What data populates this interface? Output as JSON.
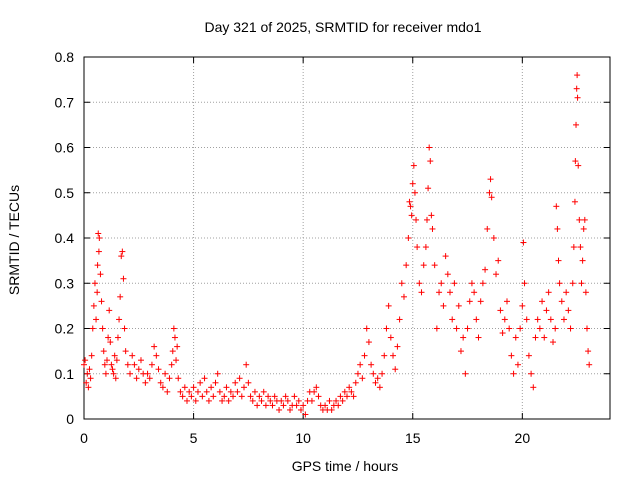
{
  "chart_data": {
    "type": "scatter",
    "title": "Day 321 of 2025, SRMTID for receiver mdo1",
    "xlabel": "GPS time / hours",
    "ylabel": "SRMTID / TECUs",
    "xlim": [
      0,
      24
    ],
    "ylim": [
      0,
      0.8
    ],
    "xticks": [
      0,
      5,
      10,
      15,
      20
    ],
    "xtick_labels": [
      "0",
      "5",
      "10",
      "15",
      "20"
    ],
    "yticks": [
      0,
      0.1,
      0.2,
      0.3,
      0.4,
      0.5,
      0.6,
      0.7,
      0.8
    ],
    "ytick_labels": [
      "0",
      "0.1",
      "0.2",
      "0.3",
      "0.4",
      "0.5",
      "0.6",
      "0.7",
      "0.8"
    ],
    "grid": true,
    "marker": "+",
    "marker_color": "#ff0000",
    "series": [
      {
        "name": "SRMTID",
        "points": [
          [
            0.0,
            0.12
          ],
          [
            0.05,
            0.13
          ],
          [
            0.1,
            0.08
          ],
          [
            0.15,
            0.1
          ],
          [
            0.2,
            0.07
          ],
          [
            0.25,
            0.11
          ],
          [
            0.3,
            0.09
          ],
          [
            0.35,
            0.14
          ],
          [
            0.4,
            0.2
          ],
          [
            0.45,
            0.25
          ],
          [
            0.5,
            0.3
          ],
          [
            0.55,
            0.22
          ],
          [
            0.6,
            0.28
          ],
          [
            0.62,
            0.34
          ],
          [
            0.65,
            0.41
          ],
          [
            0.68,
            0.37
          ],
          [
            0.7,
            0.4
          ],
          [
            0.75,
            0.32
          ],
          [
            0.8,
            0.26
          ],
          [
            0.85,
            0.2
          ],
          [
            0.9,
            0.15
          ],
          [
            0.95,
            0.12
          ],
          [
            1.0,
            0.1
          ],
          [
            1.05,
            0.13
          ],
          [
            1.1,
            0.18
          ],
          [
            1.15,
            0.24
          ],
          [
            1.2,
            0.17
          ],
          [
            1.25,
            0.12
          ],
          [
            1.3,
            0.11
          ],
          [
            1.35,
            0.1
          ],
          [
            1.4,
            0.14
          ],
          [
            1.45,
            0.09
          ],
          [
            1.5,
            0.13
          ],
          [
            1.55,
            0.18
          ],
          [
            1.6,
            0.22
          ],
          [
            1.65,
            0.27
          ],
          [
            1.7,
            0.36
          ],
          [
            1.75,
            0.37
          ],
          [
            1.8,
            0.31
          ],
          [
            1.85,
            0.2
          ],
          [
            1.9,
            0.15
          ],
          [
            2.0,
            0.12
          ],
          [
            2.1,
            0.1
          ],
          [
            2.2,
            0.14
          ],
          [
            2.3,
            0.12
          ],
          [
            2.4,
            0.09
          ],
          [
            2.5,
            0.11
          ],
          [
            2.6,
            0.13
          ],
          [
            2.7,
            0.1
          ],
          [
            2.8,
            0.08
          ],
          [
            2.9,
            0.1
          ],
          [
            3.0,
            0.09
          ],
          [
            3.1,
            0.12
          ],
          [
            3.2,
            0.16
          ],
          [
            3.3,
            0.14
          ],
          [
            3.4,
            0.11
          ],
          [
            3.5,
            0.08
          ],
          [
            3.6,
            0.07
          ],
          [
            3.7,
            0.1
          ],
          [
            3.8,
            0.06
          ],
          [
            3.9,
            0.09
          ],
          [
            4.0,
            0.12
          ],
          [
            4.05,
            0.15
          ],
          [
            4.1,
            0.2
          ],
          [
            4.15,
            0.18
          ],
          [
            4.2,
            0.13
          ],
          [
            4.25,
            0.16
          ],
          [
            4.3,
            0.09
          ],
          [
            4.4,
            0.06
          ],
          [
            4.5,
            0.05
          ],
          [
            4.6,
            0.07
          ],
          [
            4.7,
            0.04
          ],
          [
            4.8,
            0.06
          ],
          [
            4.9,
            0.05
          ],
          [
            5.0,
            0.07
          ],
          [
            5.1,
            0.04
          ],
          [
            5.2,
            0.06
          ],
          [
            5.3,
            0.08
          ],
          [
            5.4,
            0.05
          ],
          [
            5.5,
            0.09
          ],
          [
            5.6,
            0.06
          ],
          [
            5.7,
            0.04
          ],
          [
            5.8,
            0.07
          ],
          [
            5.9,
            0.05
          ],
          [
            6.0,
            0.08
          ],
          [
            6.1,
            0.1
          ],
          [
            6.2,
            0.06
          ],
          [
            6.3,
            0.04
          ],
          [
            6.4,
            0.05
          ],
          [
            6.5,
            0.07
          ],
          [
            6.6,
            0.04
          ],
          [
            6.7,
            0.06
          ],
          [
            6.8,
            0.05
          ],
          [
            6.9,
            0.08
          ],
          [
            7.0,
            0.06
          ],
          [
            7.1,
            0.09
          ],
          [
            7.2,
            0.05
          ],
          [
            7.3,
            0.07
          ],
          [
            7.4,
            0.12
          ],
          [
            7.5,
            0.08
          ],
          [
            7.6,
            0.05
          ],
          [
            7.7,
            0.04
          ],
          [
            7.8,
            0.06
          ],
          [
            7.9,
            0.03
          ],
          [
            8.0,
            0.05
          ],
          [
            8.1,
            0.04
          ],
          [
            8.2,
            0.06
          ],
          [
            8.3,
            0.03
          ],
          [
            8.4,
            0.05
          ],
          [
            8.5,
            0.04
          ],
          [
            8.6,
            0.03
          ],
          [
            8.7,
            0.05
          ],
          [
            8.8,
            0.04
          ],
          [
            8.9,
            0.02
          ],
          [
            9.0,
            0.04
          ],
          [
            9.1,
            0.03
          ],
          [
            9.2,
            0.05
          ],
          [
            9.3,
            0.04
          ],
          [
            9.4,
            0.02
          ],
          [
            9.5,
            0.03
          ],
          [
            9.6,
            0.05
          ],
          [
            9.7,
            0.03
          ],
          [
            9.8,
            0.04
          ],
          [
            9.9,
            0.02
          ],
          [
            10.0,
            0.03
          ],
          [
            10.1,
            0.01
          ],
          [
            10.2,
            0.04
          ],
          [
            10.3,
            0.06
          ],
          [
            10.4,
            0.04
          ],
          [
            10.5,
            0.06
          ],
          [
            10.6,
            0.07
          ],
          [
            10.7,
            0.05
          ],
          [
            10.8,
            0.03
          ],
          [
            10.9,
            0.02
          ],
          [
            11.0,
            0.03
          ],
          [
            11.1,
            0.02
          ],
          [
            11.2,
            0.04
          ],
          [
            11.3,
            0.02
          ],
          [
            11.4,
            0.03
          ],
          [
            11.5,
            0.04
          ],
          [
            11.6,
            0.03
          ],
          [
            11.7,
            0.05
          ],
          [
            11.8,
            0.04
          ],
          [
            11.9,
            0.06
          ],
          [
            12.0,
            0.05
          ],
          [
            12.1,
            0.07
          ],
          [
            12.2,
            0.06
          ],
          [
            12.3,
            0.05
          ],
          [
            12.4,
            0.08
          ],
          [
            12.5,
            0.1
          ],
          [
            12.6,
            0.12
          ],
          [
            12.7,
            0.09
          ],
          [
            12.8,
            0.14
          ],
          [
            12.9,
            0.2
          ],
          [
            13.0,
            0.17
          ],
          [
            13.1,
            0.12
          ],
          [
            13.2,
            0.1
          ],
          [
            13.3,
            0.08
          ],
          [
            13.4,
            0.09
          ],
          [
            13.5,
            0.07
          ],
          [
            13.6,
            0.1
          ],
          [
            13.7,
            0.14
          ],
          [
            13.8,
            0.2
          ],
          [
            13.9,
            0.25
          ],
          [
            14.0,
            0.18
          ],
          [
            14.1,
            0.14
          ],
          [
            14.2,
            0.11
          ],
          [
            14.3,
            0.16
          ],
          [
            14.4,
            0.22
          ],
          [
            14.5,
            0.3
          ],
          [
            14.6,
            0.27
          ],
          [
            14.7,
            0.34
          ],
          [
            14.8,
            0.4
          ],
          [
            14.85,
            0.48
          ],
          [
            14.9,
            0.47
          ],
          [
            14.95,
            0.45
          ],
          [
            15.0,
            0.52
          ],
          [
            15.05,
            0.56
          ],
          [
            15.1,
            0.5
          ],
          [
            15.15,
            0.44
          ],
          [
            15.2,
            0.38
          ],
          [
            15.3,
            0.3
          ],
          [
            15.4,
            0.28
          ],
          [
            15.5,
            0.34
          ],
          [
            15.6,
            0.38
          ],
          [
            15.65,
            0.44
          ],
          [
            15.7,
            0.51
          ],
          [
            15.75,
            0.6
          ],
          [
            15.8,
            0.57
          ],
          [
            15.85,
            0.45
          ],
          [
            15.9,
            0.42
          ],
          [
            16.0,
            0.34
          ],
          [
            16.1,
            0.2
          ],
          [
            16.2,
            0.28
          ],
          [
            16.3,
            0.3
          ],
          [
            16.4,
            0.25
          ],
          [
            16.5,
            0.36
          ],
          [
            16.6,
            0.32
          ],
          [
            16.7,
            0.28
          ],
          [
            16.8,
            0.22
          ],
          [
            16.9,
            0.3
          ],
          [
            17.0,
            0.2
          ],
          [
            17.1,
            0.25
          ],
          [
            17.2,
            0.15
          ],
          [
            17.3,
            0.18
          ],
          [
            17.4,
            0.1
          ],
          [
            17.5,
            0.2
          ],
          [
            17.6,
            0.26
          ],
          [
            17.7,
            0.3
          ],
          [
            17.8,
            0.28
          ],
          [
            17.9,
            0.22
          ],
          [
            18.0,
            0.18
          ],
          [
            18.1,
            0.26
          ],
          [
            18.2,
            0.3
          ],
          [
            18.3,
            0.33
          ],
          [
            18.4,
            0.42
          ],
          [
            18.5,
            0.5
          ],
          [
            18.55,
            0.53
          ],
          [
            18.6,
            0.49
          ],
          [
            18.7,
            0.4
          ],
          [
            18.8,
            0.32
          ],
          [
            18.9,
            0.35
          ],
          [
            19.0,
            0.24
          ],
          [
            19.1,
            0.19
          ],
          [
            19.2,
            0.22
          ],
          [
            19.3,
            0.26
          ],
          [
            19.4,
            0.2
          ],
          [
            19.5,
            0.14
          ],
          [
            19.6,
            0.1
          ],
          [
            19.7,
            0.18
          ],
          [
            19.8,
            0.12
          ],
          [
            19.9,
            0.2
          ],
          [
            20.0,
            0.25
          ],
          [
            20.05,
            0.39
          ],
          [
            20.1,
            0.3
          ],
          [
            20.2,
            0.22
          ],
          [
            20.3,
            0.14
          ],
          [
            20.4,
            0.1
          ],
          [
            20.5,
            0.07
          ],
          [
            20.6,
            0.18
          ],
          [
            20.7,
            0.22
          ],
          [
            20.8,
            0.2
          ],
          [
            20.9,
            0.26
          ],
          [
            21.0,
            0.18
          ],
          [
            21.1,
            0.24
          ],
          [
            21.2,
            0.28
          ],
          [
            21.3,
            0.22
          ],
          [
            21.4,
            0.17
          ],
          [
            21.5,
            0.2
          ],
          [
            21.55,
            0.47
          ],
          [
            21.6,
            0.42
          ],
          [
            21.65,
            0.35
          ],
          [
            21.7,
            0.3
          ],
          [
            21.8,
            0.26
          ],
          [
            21.9,
            0.22
          ],
          [
            22.0,
            0.28
          ],
          [
            22.1,
            0.24
          ],
          [
            22.2,
            0.2
          ],
          [
            22.3,
            0.3
          ],
          [
            22.35,
            0.38
          ],
          [
            22.4,
            0.48
          ],
          [
            22.42,
            0.57
          ],
          [
            22.45,
            0.65
          ],
          [
            22.48,
            0.73
          ],
          [
            22.5,
            0.76
          ],
          [
            22.52,
            0.71
          ],
          [
            22.55,
            0.56
          ],
          [
            22.6,
            0.44
          ],
          [
            22.65,
            0.38
          ],
          [
            22.7,
            0.3
          ],
          [
            22.75,
            0.35
          ],
          [
            22.8,
            0.42
          ],
          [
            22.85,
            0.44
          ],
          [
            22.9,
            0.28
          ],
          [
            22.95,
            0.2
          ],
          [
            23.0,
            0.15
          ],
          [
            23.05,
            0.12
          ]
        ]
      }
    ]
  }
}
